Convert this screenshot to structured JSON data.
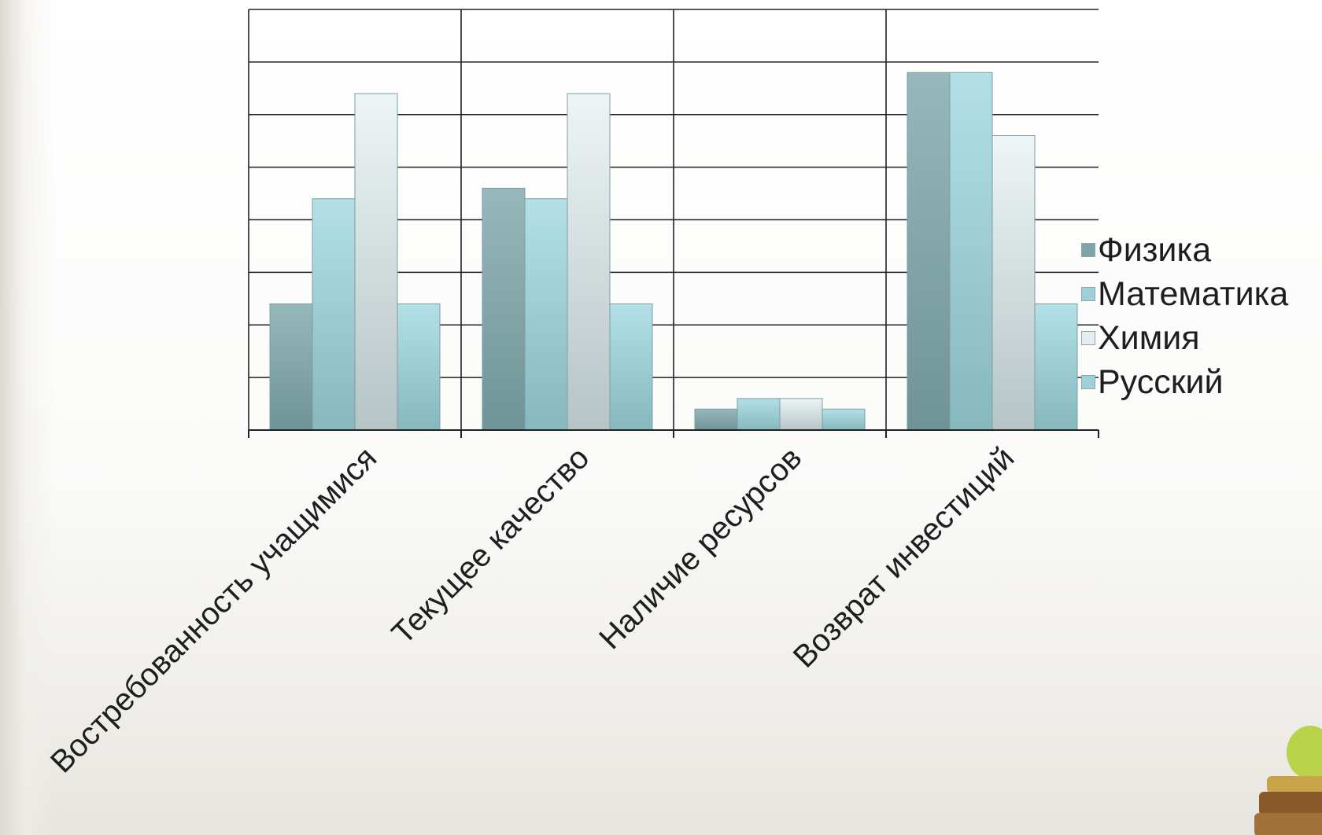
{
  "chart_data": {
    "type": "bar",
    "title": "",
    "xlabel": "",
    "ylabel": "",
    "categories": [
      "Востребованность учащимися",
      "Текущее качество",
      "Наличие ресурсов",
      "Возврат инвестиций"
    ],
    "ylim": [
      0,
      8
    ],
    "y_tick_labels_shown": false,
    "grid": true,
    "legend_position": "right",
    "series": [
      {
        "name": "Физика",
        "values": [
          2.4,
          4.6,
          0.4,
          6.8
        ],
        "color": "#7fa5a8"
      },
      {
        "name": "Математика",
        "values": [
          4.4,
          4.4,
          0.6,
          6.8
        ],
        "color": "#9fd0d8"
      },
      {
        "name": "Химия",
        "values": [
          6.4,
          6.4,
          0.6,
          5.6
        ],
        "color": "#d8e6e8"
      },
      {
        "name": "Русский",
        "values": [
          2.4,
          2.4,
          0.4,
          2.4
        ],
        "color": "#9fd0d8"
      }
    ]
  }
}
